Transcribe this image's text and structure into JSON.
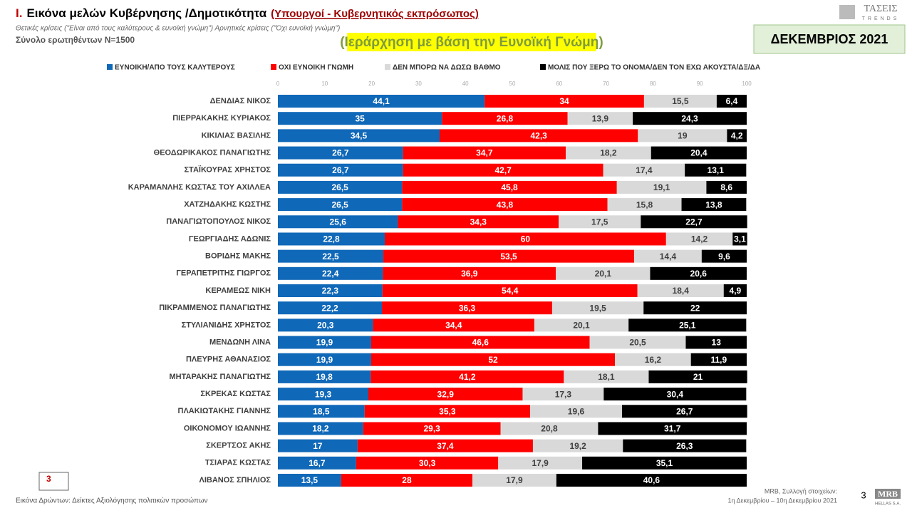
{
  "header": {
    "number": "I.",
    "title": "Εικόνα μελών Κυβέρνησης /Δημοτικότητα",
    "title_note": "(Υπουργοί - Κυβερνητικός εκπρόσωπος)",
    "definition": "Θετικές κρίσεις (\"Είναι από τους καλύτερους & ευνοϊκή γνώμη\")  Αρνητικές κρίσεις (\"Όχι ευνοϊκή γνώμη\")",
    "sample": "Σύνολο ερωτηθέντων N=1500",
    "ranking": "(Ιεράρχηση με βάση την Ευνοϊκή Γνώμη)",
    "period": "ΔΕΚΕΜΒΡΙΟΣ 2021",
    "logo": "ΤΑΣΕΙΣ",
    "logo_sub": "TRENDS"
  },
  "chart_data": {
    "type": "stacked-barh",
    "categories": [
      "ΔΕΝΔΙΑΣ ΝΙΚΟΣ",
      "ΠΙΕΡΡΑΚΑΚΗΣ ΚΥΡΙΑΚΟΣ",
      "ΚΙΚΙΛΙΑΣ ΒΑΣΙΛΗΣ",
      "ΘΕΟΔΩΡΙΚΑΚΟΣ ΠΑΝΑΓΙΩΤΗΣ",
      "ΣΤΑΪΚΟΥΡΑΣ ΧΡΗΣΤΟΣ",
      "ΚΑΡΑΜΑΝΛΗΣ ΚΩΣΤΑΣ ΤΟΥ ΑΧΙΛΛΕΑ",
      "ΧΑΤΖΗΔΑΚΗΣ ΚΩΣΤΗΣ",
      "ΠΑΝΑΓΙΩΤΟΠΟΥΛΟΣ ΝΙΚΟΣ",
      "ΓΕΩΡΓΙΑΔΗΣ ΑΔΩΝΙΣ",
      "ΒΟΡΙΔΗΣ ΜΑΚΗΣ",
      "ΓΕΡΑΠΕΤΡΙΤΗΣ ΓΙΩΡΓΟΣ",
      "ΚΕΡΑΜΕΩΣ ΝΙΚΗ",
      "ΠΙΚΡΑΜΜΕΝΟΣ ΠΑΝΑΓΙΩΤΗΣ",
      "ΣΤΥΛΙΑΝΙΔΗΣ ΧΡΗΣΤΟΣ",
      "ΜΕΝΔΩΝΗ ΛΙΝΑ",
      "ΠΛΕΥΡΗΣ ΑΘΑΝΑΣΙΟΣ",
      "ΜΗΤΑΡΑΚΗΣ ΠΑΝΑΓΙΩΤΗΣ",
      "ΣΚΡΕΚΑΣ ΚΩΣΤΑΣ",
      "ΠΛΑΚΙΩΤΑΚΗΣ ΓΙΑΝΝΗΣ",
      "ΟΙΚΟΝΟΜΟΥ ΙΩΑΝΝΗΣ",
      "ΣΚΕΡΤΣΟΣ ΑΚΗΣ",
      "ΤΣΙΑΡΑΣ ΚΩΣΤΑΣ",
      "ΛΙΒΑΝΟΣ ΣΠΗΛΙΟΣ"
    ],
    "series": [
      {
        "name": "ΕΥΝΟΙΚΗ/ΑΠΟ ΤΟΥΣ ΚΑΛΥΤΕΡΟΥΣ",
        "color": "#1068b8",
        "values": [
          44.1,
          35,
          34.5,
          26.7,
          26.7,
          26.5,
          26.5,
          25.6,
          22.8,
          22.5,
          22.4,
          22.3,
          22.2,
          20.3,
          19.9,
          19.9,
          19.8,
          19.3,
          18.5,
          18.2,
          17,
          16.7,
          13.5
        ],
        "value_labels": [
          "44,1",
          "35",
          "34,5",
          "26,7",
          "26,7",
          "26,5",
          "26,5",
          "25,6",
          "22,8",
          "22,5",
          "22,4",
          "22,3",
          "22,2",
          "20,3",
          "19,9",
          "19,9",
          "19,8",
          "19,3",
          "18,5",
          "18,2",
          "17",
          "16,7",
          "13,5"
        ]
      },
      {
        "name": "ΟΧΙ ΕΥΝΟΙΚΗ ΓΝΩΜΗ",
        "color": "#ff0000",
        "values": [
          34,
          26.8,
          42.3,
          34.7,
          42.7,
          45.8,
          43.8,
          34.3,
          60,
          53.5,
          36.9,
          54.4,
          36.3,
          34.4,
          46.6,
          52,
          41.2,
          32.9,
          35.3,
          29.3,
          37.4,
          30.3,
          28
        ],
        "value_labels": [
          "34",
          "26,8",
          "42,3",
          "34,7",
          "42,7",
          "45,8",
          "43,8",
          "34,3",
          "60",
          "53,5",
          "36,9",
          "54,4",
          "36,3",
          "34,4",
          "46,6",
          "52",
          "41,2",
          "32,9",
          "35,3",
          "29,3",
          "37,4",
          "30,3",
          "28"
        ]
      },
      {
        "name": "ΔΕΝ ΜΠΟΡΩ ΝΑ ΔΩΣΩ ΒΑΘΜΟ",
        "color": "#d9d9d9",
        "values": [
          15.5,
          13.9,
          19,
          18.2,
          17.4,
          19.1,
          15.8,
          17.5,
          14.2,
          14.4,
          20.1,
          18.4,
          19.5,
          20.1,
          20.5,
          16.2,
          18.1,
          17.3,
          19.6,
          20.8,
          19.2,
          17.9,
          17.9
        ],
        "value_labels": [
          "15,5",
          "13,9",
          "19",
          "18,2",
          "17,4",
          "19,1",
          "15,8",
          "17,5",
          "14,2",
          "14,4",
          "20,1",
          "18,4",
          "19,5",
          "20,1",
          "20,5",
          "16,2",
          "18,1",
          "17,3",
          "19,6",
          "20,8",
          "19,2",
          "17,9",
          "17,9"
        ]
      },
      {
        "name": "ΜΟΛΙΣ ΠΟΥ ΞΕΡΩ ΤΟ ΟΝΟΜΑ/ΔΕΝ ΤΟΝ ΕΧΩ ΑΚΟΥΣΤΑ/ΔΞ/ΔΑ",
        "color": "#000000",
        "values": [
          6.4,
          24.3,
          4.2,
          20.4,
          13.1,
          8.6,
          13.8,
          22.7,
          3.1,
          9.6,
          20.6,
          4.9,
          22,
          25.1,
          13,
          11.9,
          21,
          30.4,
          26.7,
          31.7,
          26.3,
          35.1,
          40.6
        ],
        "value_labels": [
          "6,4",
          "24,3",
          "4,2",
          "20,4",
          "13,1",
          "8,6",
          "13,8",
          "22,7",
          "3,1",
          "9,6",
          "20,6",
          "4,9",
          "22",
          "25,1",
          "13",
          "11,9",
          "21",
          "30,4",
          "26,7",
          "31,7",
          "26,3",
          "35,1",
          "40,6"
        ]
      }
    ],
    "xlim": [
      0,
      100
    ],
    "xticks": [
      0,
      10,
      20,
      30,
      40,
      50,
      60,
      70,
      80,
      90,
      100
    ]
  },
  "footer": {
    "page_box": "3",
    "source": "Εικόνα Δρώντων: Δείκτες Αξιολόγησης πολιτικών προσώπων",
    "credit": "MRB, Συλλογή στοιχείων:",
    "dates": "1η Δεκεμβρίου – 10η Δεκεμβρίου 2021",
    "page": "3",
    "logo": "MRB",
    "logo_sub": "HELLAS S.A."
  }
}
